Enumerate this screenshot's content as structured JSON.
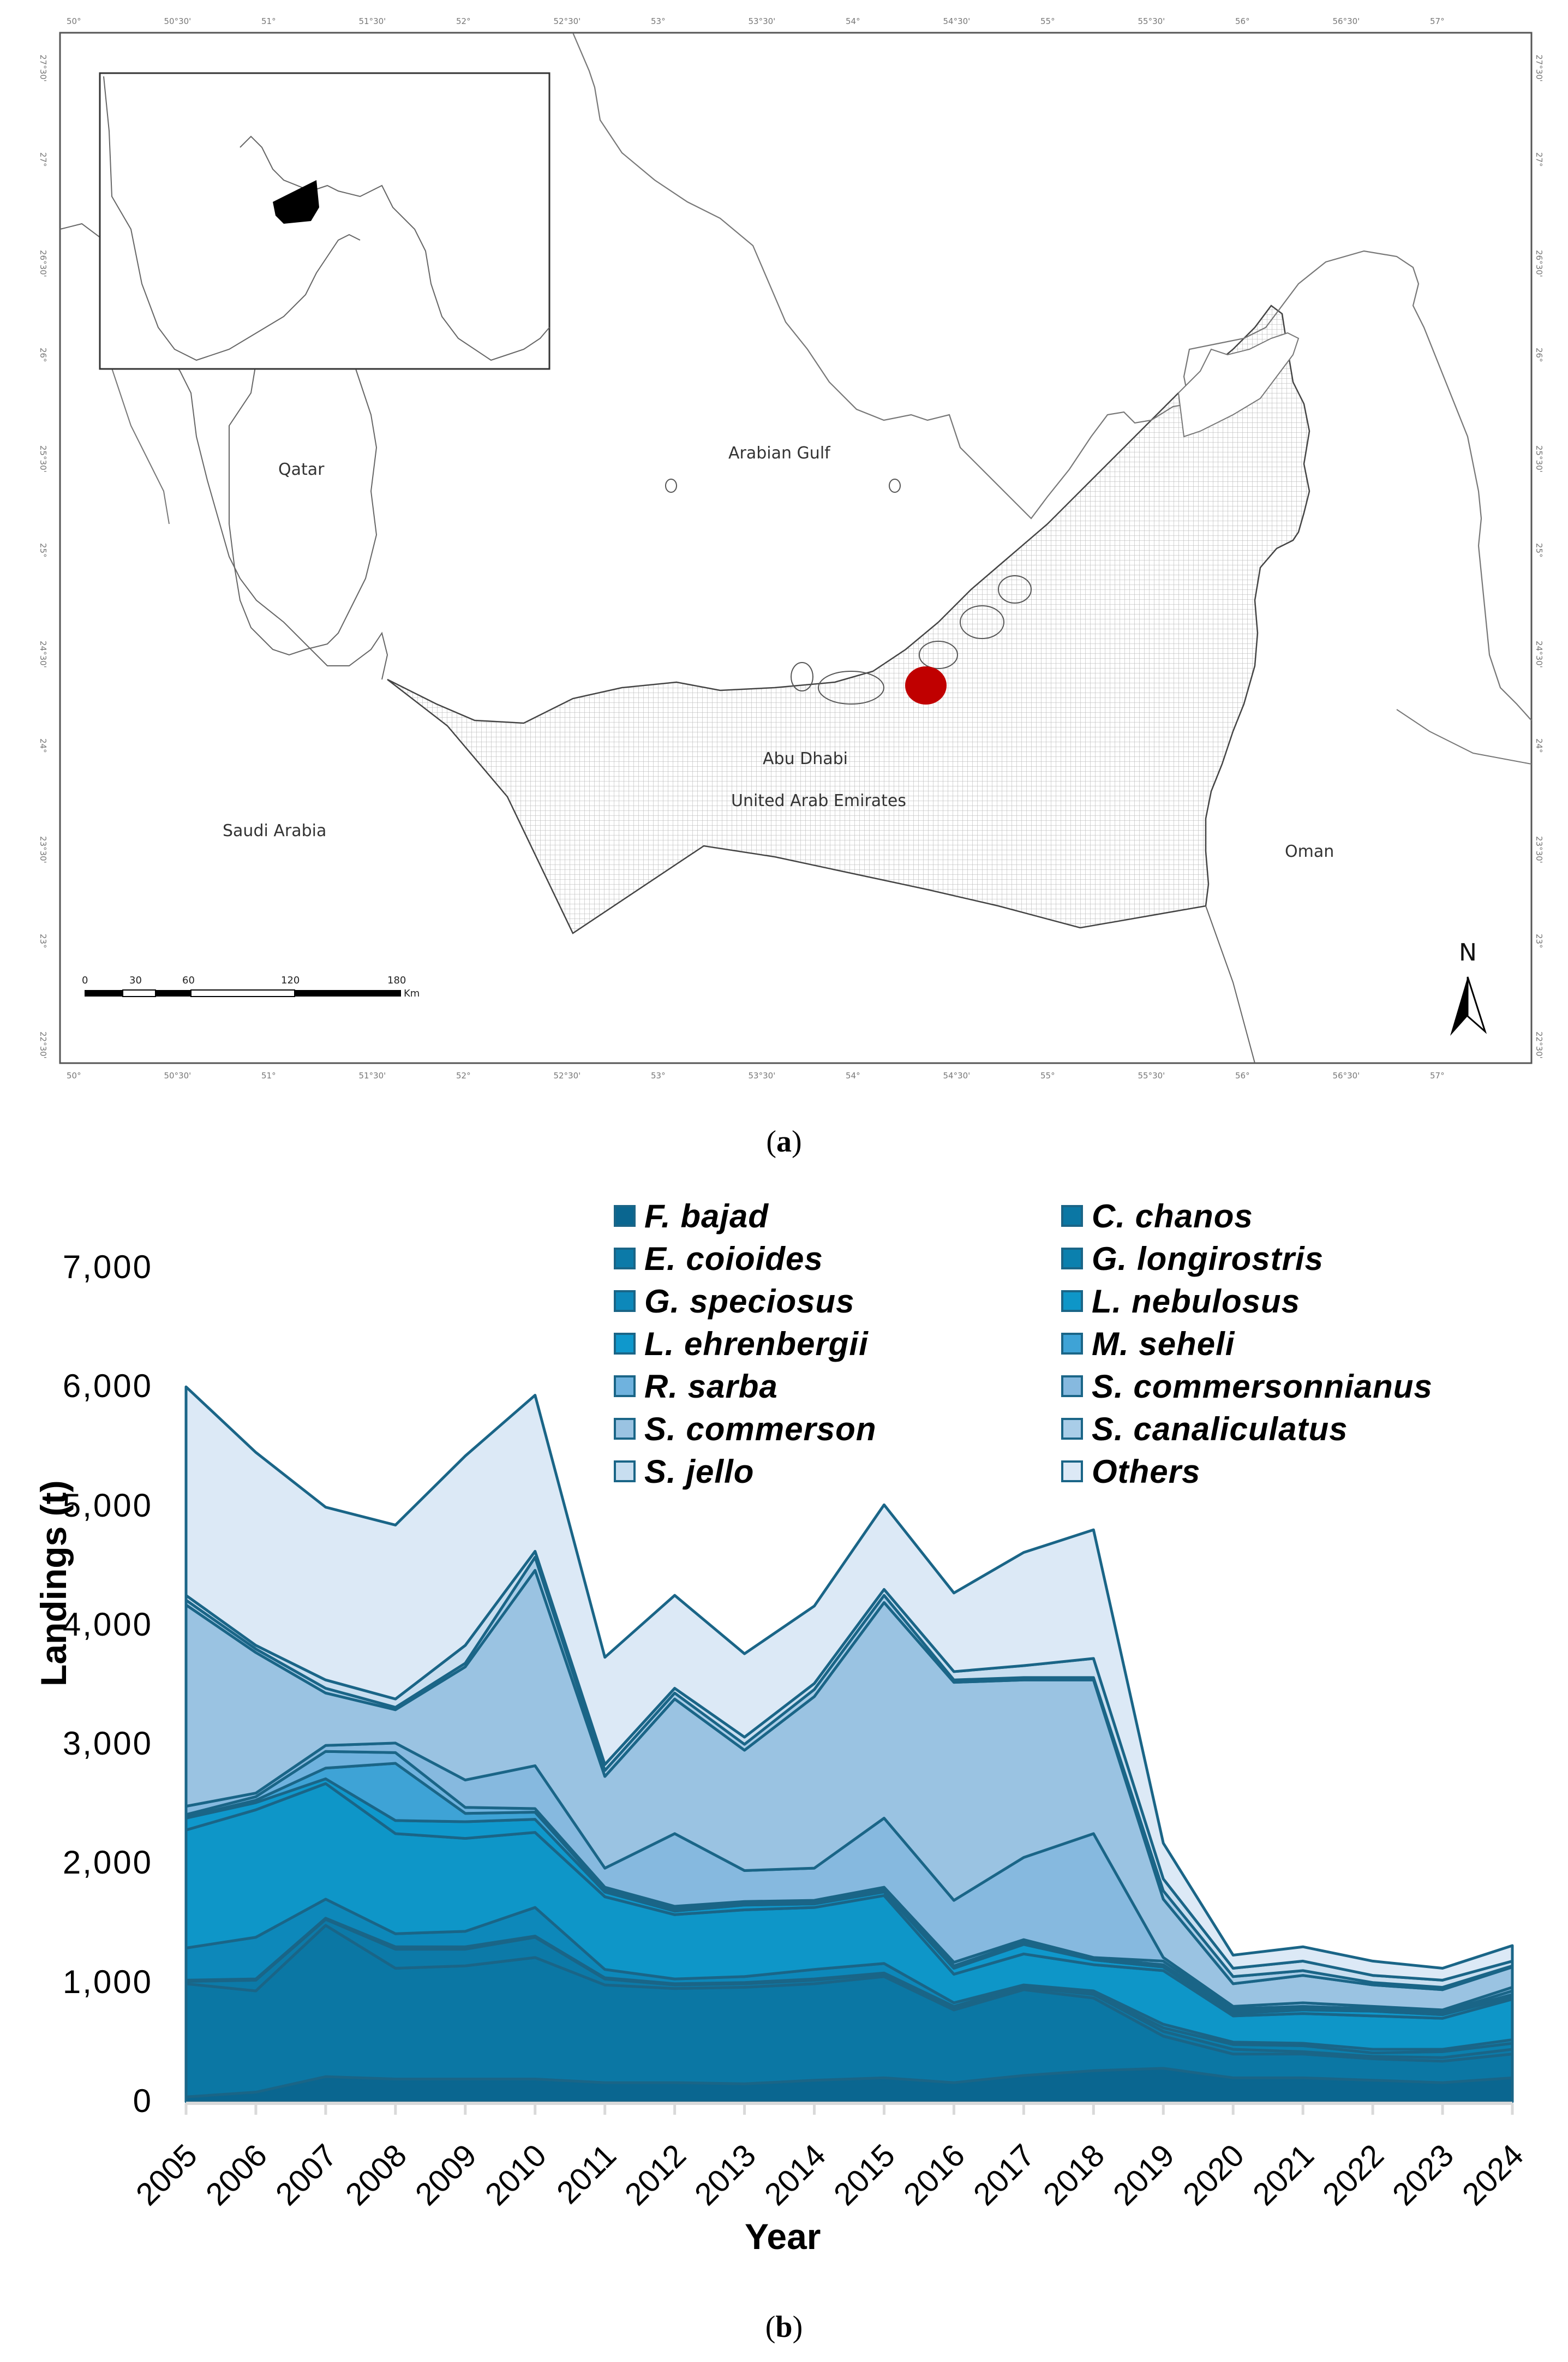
{
  "figure": {
    "panel_a_caption": "a",
    "panel_b_caption": "b"
  },
  "map": {
    "labels": {
      "arabian_gulf": "Arabian Gulf",
      "qatar": "Qatar",
      "saudi_arabia": "Saudi Arabia",
      "abu_dhabi": "Abu Dhabi",
      "uae": "United Arab Emirates",
      "oman": "Oman",
      "north": "N"
    },
    "longitude_ticks": [
      "50°",
      "50°30'",
      "51°",
      "51°30'",
      "52°",
      "52°30'",
      "53°",
      "53°30'",
      "54°",
      "54°30'",
      "55°",
      "55°30'",
      "56°",
      "56°30'",
      "57°"
    ],
    "latitude_ticks": [
      "27°30'",
      "27°",
      "26°30'",
      "26°",
      "25°30'",
      "25°",
      "24°30'",
      "24°",
      "23°30'",
      "23°",
      "22°30'"
    ],
    "scale_bar": {
      "ticks": [
        "0",
        "30",
        "60",
        "120",
        "180"
      ],
      "unit": "Km"
    },
    "study_site_marker_color": "#c00000",
    "uae_fill": "hatched-grid",
    "inset": {
      "highlight_color": "#000000"
    }
  },
  "chart_data": {
    "type": "area",
    "stacked": true,
    "title": "",
    "xlabel": "Year",
    "ylabel": "Landings (t)",
    "ylim": [
      0,
      7000
    ],
    "yticks": [
      "0",
      "1,000",
      "2,000",
      "3,000",
      "4,000",
      "5,000",
      "6,000",
      "7,000"
    ],
    "grid": false,
    "legend_position": "top-right, two columns",
    "categories": [
      "2005",
      "2006",
      "2007",
      "2008",
      "2009",
      "2010",
      "2011",
      "2012",
      "2013",
      "2014",
      "2015",
      "2016",
      "2017",
      "2018",
      "2019",
      "2020",
      "2021",
      "2022",
      "2023",
      "2024"
    ],
    "series": [
      {
        "name": "F. bajad",
        "color": "#0a6690",
        "values": [
          40,
          80,
          210,
          190,
          190,
          190,
          160,
          160,
          150,
          180,
          200,
          160,
          220,
          260,
          280,
          200,
          200,
          180,
          160,
          200
        ]
      },
      {
        "name": "C. chanos",
        "color": "#0b77a4",
        "values": [
          950,
          850,
          1270,
          930,
          950,
          1020,
          820,
          790,
          810,
          810,
          850,
          610,
          720,
          610,
          270,
          200,
          200,
          180,
          180,
          200
        ]
      },
      {
        "name": "E. coioides",
        "color": "#0c7aa8",
        "values": [
          20,
          90,
          50,
          160,
          140,
          170,
          50,
          30,
          30,
          30,
          20,
          20,
          20,
          30,
          40,
          40,
          20,
          20,
          30,
          40
        ]
      },
      {
        "name": "G. longirostris",
        "color": "#0b80ae",
        "values": [
          10,
          10,
          10,
          20,
          20,
          10,
          10,
          10,
          10,
          10,
          10,
          10,
          10,
          10,
          30,
          40,
          50,
          30,
          50,
          50
        ]
      },
      {
        "name": "G. speciosus",
        "color": "#0d88ba",
        "values": [
          270,
          350,
          160,
          110,
          130,
          240,
          70,
          40,
          50,
          80,
          80,
          30,
          10,
          20,
          30,
          20,
          20,
          30,
          20,
          30
        ]
      },
      {
        "name": "L. nebulosus",
        "color": "#0e96c8",
        "values": [
          990,
          1070,
          970,
          840,
          780,
          630,
          610,
          540,
          560,
          520,
          570,
          240,
          260,
          220,
          450,
          220,
          250,
          280,
          260,
          340
        ]
      },
      {
        "name": "L. ehrenbergii",
        "color": "#0f98cc",
        "values": [
          100,
          60,
          40,
          110,
          140,
          110,
          40,
          30,
          40,
          30,
          30,
          50,
          80,
          40,
          30,
          20,
          30,
          40,
          30,
          20
        ]
      },
      {
        "name": "M. seheli",
        "color": "#3ea3d6",
        "values": [
          10,
          20,
          90,
          480,
          70,
          60,
          20,
          20,
          10,
          10,
          20,
          20,
          20,
          10,
          20,
          20,
          10,
          10,
          10,
          20
        ]
      },
      {
        "name": "R. sarba",
        "color": "#6fb2de",
        "values": [
          20,
          30,
          140,
          90,
          50,
          30,
          20,
          20,
          20,
          20,
          20,
          30,
          20,
          10,
          30,
          20,
          20,
          10,
          10,
          30
        ]
      },
      {
        "name": "S. commersonnianus",
        "color": "#86b9df",
        "values": [
          70,
          30,
          50,
          80,
          230,
          360,
          160,
          610,
          260,
          270,
          580,
          520,
          690,
          1040,
          30,
          20,
          30,
          20,
          20,
          30
        ]
      },
      {
        "name": "S. commerson",
        "color": "#9ac3e2",
        "values": [
          1690,
          1180,
          440,
          280,
          950,
          1640,
          770,
          1130,
          1010,
          1440,
          1810,
          1830,
          1490,
          1290,
          490,
          190,
          230,
          180,
          170,
          170
        ]
      },
      {
        "name": "S. canaliculatus",
        "color": "#a9cde8",
        "values": [
          40,
          30,
          40,
          20,
          30,
          110,
          50,
          50,
          50,
          60,
          60,
          20,
          20,
          20,
          70,
          60,
          40,
          20,
          20,
          10
        ]
      },
      {
        "name": "S. jello",
        "color": "#c8def0",
        "values": [
          40,
          30,
          70,
          70,
          150,
          50,
          50,
          40,
          60,
          50,
          50,
          70,
          100,
          160,
          100,
          70,
          80,
          60,
          60,
          40
        ]
      },
      {
        "name": "Others",
        "color": "#dce9f6",
        "values": [
          1750,
          1620,
          1450,
          1460,
          1590,
          1310,
          900,
          780,
          700,
          650,
          710,
          660,
          950,
          1080,
          300,
          110,
          120,
          120,
          100,
          130
        ]
      }
    ],
    "totals": [
      6000,
      5450,
      4990,
      4840,
      5420,
      5930,
      3730,
      4250,
      3760,
      4160,
      5010,
      4270,
      4610,
      4800,
      2170,
      1230,
      1300,
      1180,
      1120,
      1310
    ],
    "line_color": "#1a6587"
  }
}
